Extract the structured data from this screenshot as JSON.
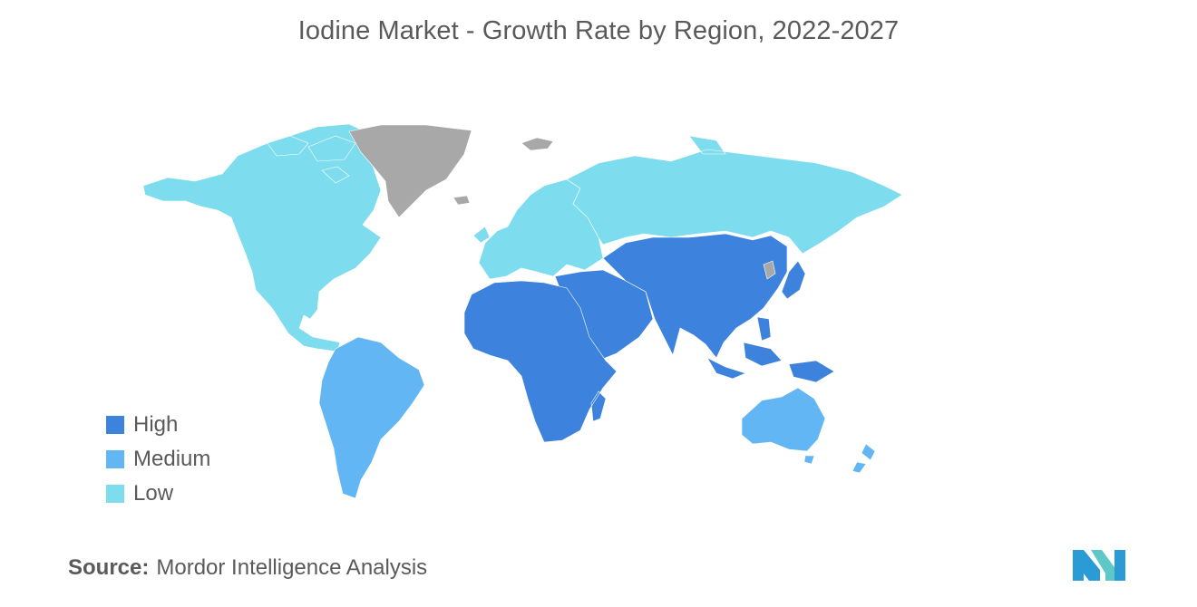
{
  "title": "Iodine Market - Growth Rate by Region, 2022-2027",
  "legend": [
    {
      "label": "High",
      "color": "#3d82dd"
    },
    {
      "label": "Medium",
      "color": "#63b6f4"
    },
    {
      "label": "Low",
      "color": "#7ddcee"
    }
  ],
  "no_data_color": "#a8a8a8",
  "source": {
    "label": "Source:",
    "text": "Mordor Intelligence Analysis"
  },
  "regions": [
    {
      "name": "North America",
      "level": "Low"
    },
    {
      "name": "Europe",
      "level": "Low"
    },
    {
      "name": "Russia",
      "level": "Low"
    },
    {
      "name": "South America",
      "level": "Medium"
    },
    {
      "name": "Australia",
      "level": "Medium"
    },
    {
      "name": "New Zealand",
      "level": "Medium"
    },
    {
      "name": "Africa",
      "level": "High"
    },
    {
      "name": "Middle East",
      "level": "High"
    },
    {
      "name": "Asia",
      "level": "High"
    },
    {
      "name": "Southeast Asia",
      "level": "High"
    },
    {
      "name": "Greenland",
      "level": "No data"
    }
  ]
}
